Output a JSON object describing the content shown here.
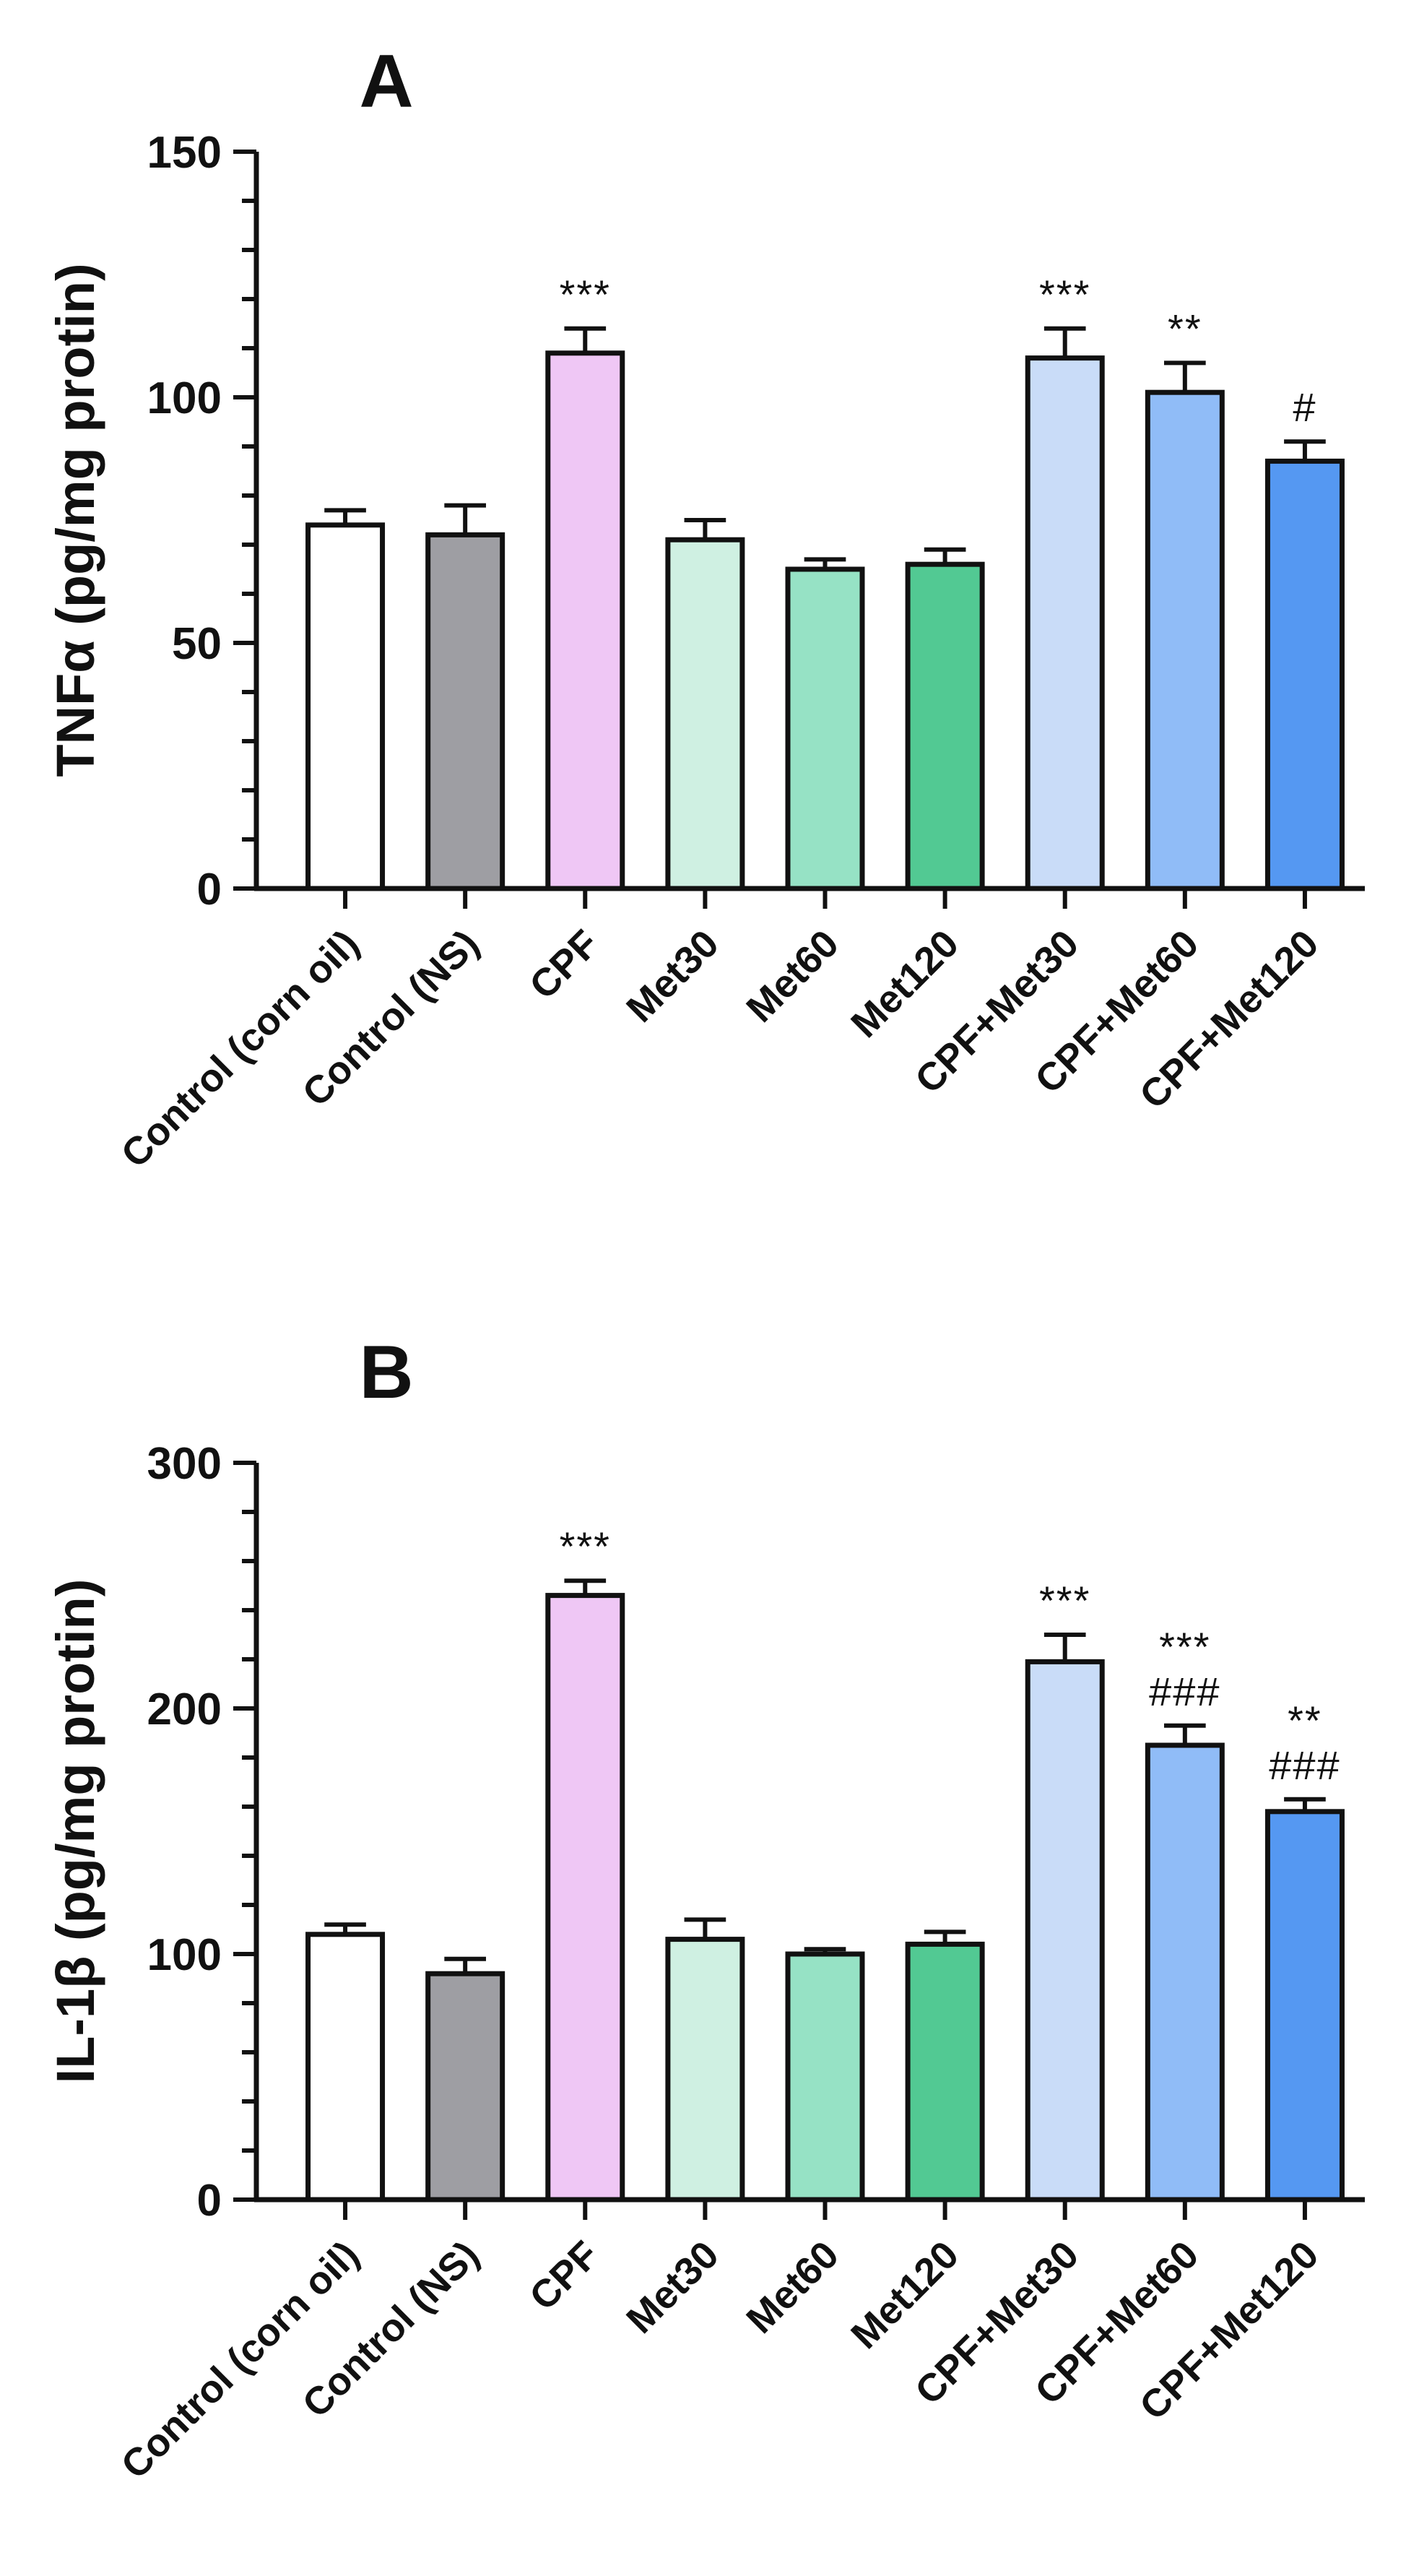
{
  "chart_data": [
    {
      "panel": "A",
      "type": "bar",
      "ylabel": "TNFα (pg/mg protin)",
      "ylim": [
        0,
        150
      ],
      "yticks": [
        0,
        50,
        100,
        150
      ],
      "categories": [
        "Control (corn oil)",
        "Control (NS)",
        "CPF",
        "Met30",
        "Met60",
        "Met120",
        "CPF+Met30",
        "CPF+Met60",
        "CPF+Met120"
      ],
      "values": [
        74,
        72,
        109,
        71,
        65,
        66,
        108,
        101,
        87
      ],
      "errors": [
        3,
        6,
        5,
        4,
        2,
        3,
        6,
        6,
        4
      ],
      "colors": [
        "#ffffff",
        "#9e9ea3",
        "#efc7f5",
        "#cff0e2",
        "#96e2c5",
        "#52c993",
        "#c9dcf8",
        "#90bcf7",
        "#5598f2"
      ],
      "annotations": [
        {
          "index": 2,
          "text": "***"
        },
        {
          "index": 6,
          "text": "***"
        },
        {
          "index": 7,
          "text": "**"
        },
        {
          "index": 8,
          "text": "#"
        }
      ]
    },
    {
      "panel": "B",
      "type": "bar",
      "ylabel": "IL-1β (pg/mg protin)",
      "ylim": [
        0,
        300
      ],
      "yticks": [
        0,
        100,
        200,
        300
      ],
      "categories": [
        "Control (corn oil)",
        "Control (NS)",
        "CPF",
        "Met30",
        "Met60",
        "Met120",
        "CPF+Met30",
        "CPF+Met60",
        "CPF+Met120"
      ],
      "values": [
        108,
        92,
        246,
        106,
        100,
        104,
        219,
        185,
        158
      ],
      "errors": [
        4,
        6,
        6,
        8,
        2,
        5,
        11,
        8,
        5
      ],
      "colors": [
        "#ffffff",
        "#9e9ea3",
        "#efc7f5",
        "#cff0e2",
        "#96e2c5",
        "#52c993",
        "#c9dcf8",
        "#90bcf7",
        "#5598f2"
      ],
      "annotations": [
        {
          "index": 2,
          "text": "***"
        },
        {
          "index": 6,
          "text": "***"
        },
        {
          "index": 7,
          "text": "***"
        },
        {
          "index": 7,
          "text": "###"
        },
        {
          "index": 8,
          "text": "**"
        },
        {
          "index": 8,
          "text": "###"
        }
      ]
    }
  ]
}
